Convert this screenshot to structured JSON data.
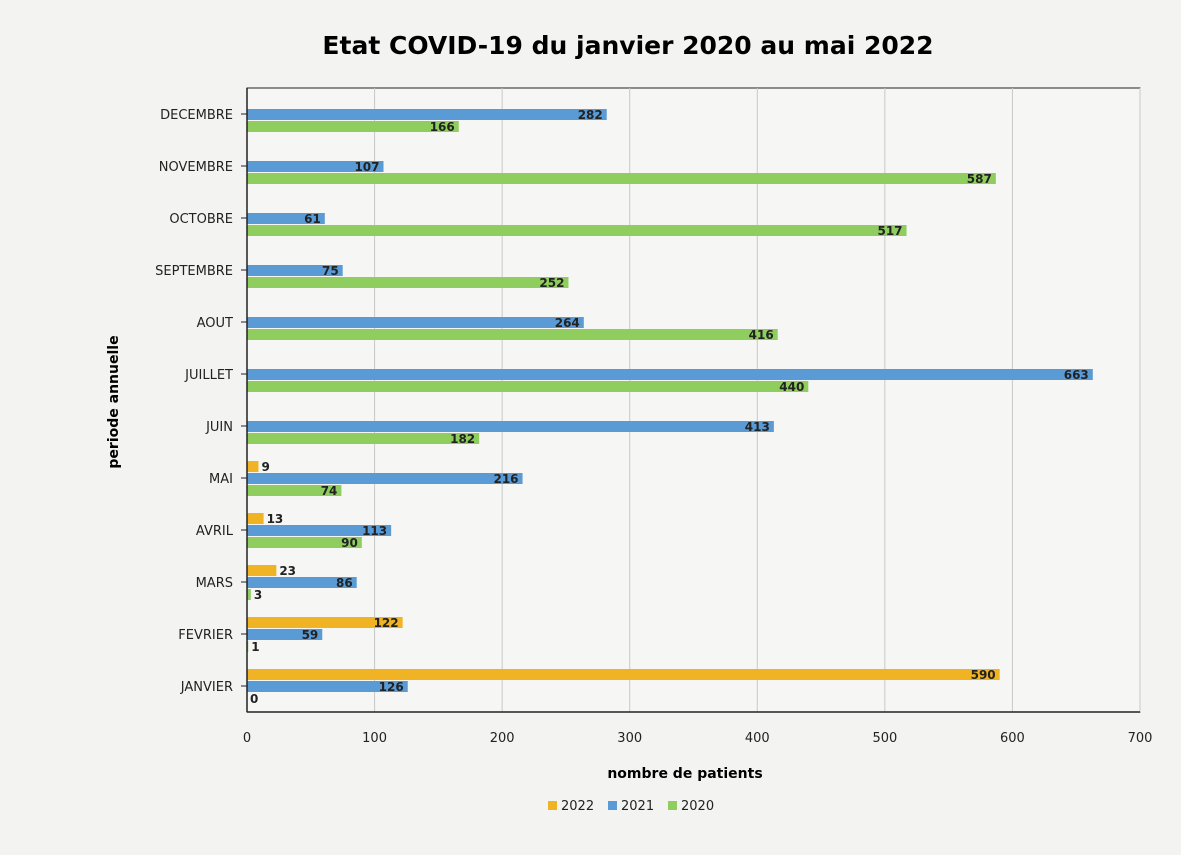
{
  "colors": {
    "2022": "#f0b323",
    "2021": "#5b9bd5",
    "2020": "#8fce5e",
    "label_text": "#222222",
    "axis": "#222222",
    "grid": "#c8c8c8",
    "title_text": "#3a3a3a"
  },
  "chart_data": {
    "type": "bar",
    "orientation": "horizontal",
    "title": "Etat COVID-19 du janvier 2020 au mai 2022",
    "xlabel": "nombre de patients",
    "ylabel": "periode annuelle",
    "xlim": [
      0,
      700
    ],
    "xticks": [
      0,
      100,
      200,
      300,
      400,
      500,
      600,
      700
    ],
    "grid": "vertical",
    "legend_position": "bottom",
    "categories": [
      "JANVIER",
      "FEVRIER",
      "MARS",
      "AVRIL",
      "MAI",
      "JUIN",
      "JUILLET",
      "AOUT",
      "SEPTEMBRE",
      "OCTOBRE",
      "NOVEMBRE",
      "DECEMBRE"
    ],
    "series": [
      {
        "name": "2022",
        "values": [
          590,
          122,
          23,
          13,
          9,
          null,
          null,
          null,
          null,
          null,
          null,
          null
        ]
      },
      {
        "name": "2021",
        "values": [
          126,
          59,
          86,
          113,
          216,
          413,
          663,
          264,
          75,
          61,
          107,
          282
        ]
      },
      {
        "name": "2020",
        "values": [
          0,
          1,
          3,
          90,
          74,
          182,
          440,
          416,
          252,
          517,
          587,
          166
        ]
      }
    ]
  }
}
